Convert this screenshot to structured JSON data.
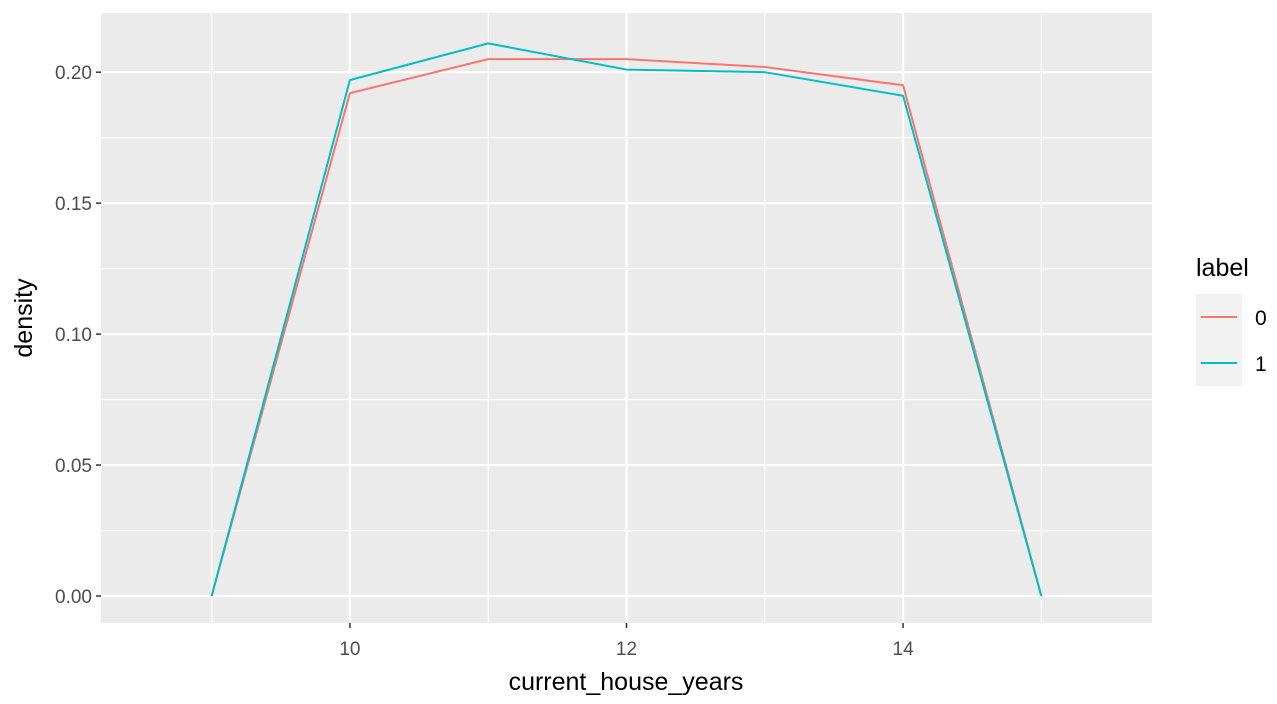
{
  "chart_data": {
    "type": "line",
    "xlabel": "current_house_years",
    "ylabel": "density",
    "xlim": [
      8.2,
      15.8
    ],
    "ylim": [
      -0.0103,
      0.2226
    ],
    "x_ticks": [
      10,
      12,
      14
    ],
    "x_minor": [
      9,
      11,
      13,
      15
    ],
    "y_ticks": [
      0.0,
      0.05,
      0.1,
      0.15,
      0.2
    ],
    "y_tick_labels": [
      "0.00",
      "0.05",
      "0.10",
      "0.15",
      "0.20"
    ],
    "y_minor": [
      0.025,
      0.075,
      0.125,
      0.175
    ],
    "grid": true,
    "legend": {
      "title": "label",
      "position": "right"
    },
    "series": [
      {
        "name": "0",
        "color": "#F8766D",
        "x": [
          9,
          10,
          11,
          12,
          13,
          14,
          15
        ],
        "y": [
          0.0,
          0.192,
          0.205,
          0.205,
          0.202,
          0.195,
          0.0
        ]
      },
      {
        "name": "1",
        "color": "#00BFC4",
        "x": [
          9,
          10,
          11,
          12,
          13,
          14,
          15
        ],
        "y": [
          0.0,
          0.197,
          0.211,
          0.201,
          0.2,
          0.191,
          0.0
        ]
      }
    ],
    "colors": {
      "panel": "#EBEBEB",
      "grid": "#FFFFFF",
      "legend_key": "#F2F2F2"
    }
  }
}
